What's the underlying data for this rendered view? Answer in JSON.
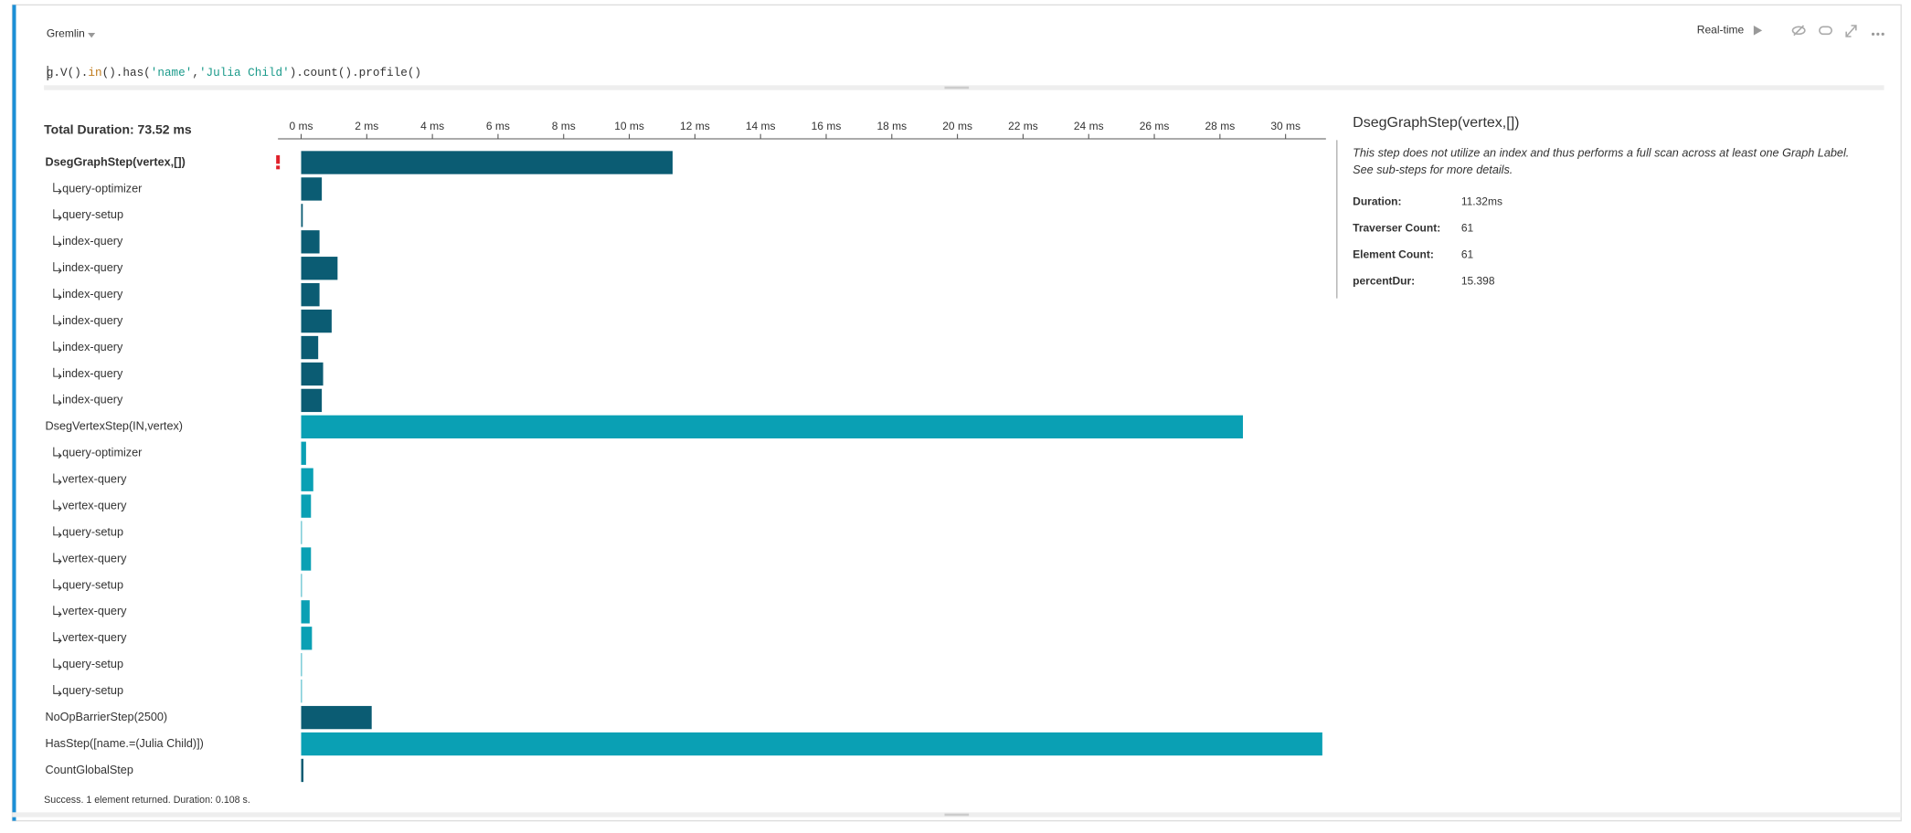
{
  "header": {
    "language": "Gremlin",
    "mode": "Real-time"
  },
  "query": {
    "tokens": [
      {
        "text": "g.V().",
        "color": "#333333"
      },
      {
        "text": "in",
        "color": "#c07a1a"
      },
      {
        "text": "().has(",
        "color": "#333333"
      },
      {
        "text": "'name'",
        "color": "#1a9a8a"
      },
      {
        "text": ",",
        "color": "#333333"
      },
      {
        "text": "'Julia Child'",
        "color": "#1a9a8a"
      },
      {
        "text": ").count().profile()",
        "color": "#333333"
      }
    ]
  },
  "profile": {
    "total": "Total Duration: 73.52 ms",
    "xlim": [
      0,
      31.23
    ],
    "xticks": [
      {
        "value": 0,
        "label": "0 ms"
      },
      {
        "value": 2,
        "label": "2 ms"
      },
      {
        "value": 4,
        "label": "4 ms"
      },
      {
        "value": 6,
        "label": "6 ms"
      },
      {
        "value": 8,
        "label": "8 ms"
      },
      {
        "value": 10,
        "label": "10 ms"
      },
      {
        "value": 12,
        "label": "12 ms"
      },
      {
        "value": 14,
        "label": "14 ms"
      },
      {
        "value": 16,
        "label": "16 ms"
      },
      {
        "value": 18,
        "label": "18 ms"
      },
      {
        "value": 20,
        "label": "20 ms"
      },
      {
        "value": 22,
        "label": "22 ms"
      },
      {
        "value": 24,
        "label": "24 ms"
      },
      {
        "value": 26,
        "label": "26 ms"
      },
      {
        "value": 28,
        "label": "28 ms"
      },
      {
        "value": 30,
        "label": "30 ms"
      }
    ],
    "rows": [
      {
        "name": "DsegGraphStep(vertex,[])",
        "value": 11.32,
        "color": "#0b5c73",
        "child": false,
        "warning": true
      },
      {
        "name": "query-optimizer",
        "value": 0.63,
        "color": "#0b5c73",
        "child": true
      },
      {
        "name": "query-setup",
        "value": 0.05,
        "color": "#0b5c73",
        "child": true
      },
      {
        "name": "index-query",
        "value": 0.56,
        "color": "#0b5c73",
        "child": true
      },
      {
        "name": "index-query",
        "value": 1.11,
        "color": "#0b5c73",
        "child": true
      },
      {
        "name": "index-query",
        "value": 0.56,
        "color": "#0b5c73",
        "child": true
      },
      {
        "name": "index-query",
        "value": 0.93,
        "color": "#0b5c73",
        "child": true
      },
      {
        "name": "index-query",
        "value": 0.52,
        "color": "#0b5c73",
        "child": true
      },
      {
        "name": "index-query",
        "value": 0.67,
        "color": "#0b5c73",
        "child": true
      },
      {
        "name": "index-query",
        "value": 0.63,
        "color": "#0b5c73",
        "child": true
      },
      {
        "name": "DsegVertexStep(IN,vertex)",
        "value": 28.7,
        "color": "#0aa0b4",
        "child": false
      },
      {
        "name": "query-optimizer",
        "value": 0.15,
        "color": "#0aa0b4",
        "child": true
      },
      {
        "name": "vertex-query",
        "value": 0.37,
        "color": "#0aa0b4",
        "child": true
      },
      {
        "name": "vertex-query",
        "value": 0.3,
        "color": "#0aa0b4",
        "child": true
      },
      {
        "name": "query-setup",
        "value": 0.02,
        "color": "#0aa0b4",
        "child": true
      },
      {
        "name": "vertex-query",
        "value": 0.3,
        "color": "#0aa0b4",
        "child": true
      },
      {
        "name": "query-setup",
        "value": 0.02,
        "color": "#0aa0b4",
        "child": true
      },
      {
        "name": "vertex-query",
        "value": 0.26,
        "color": "#0aa0b4",
        "child": true
      },
      {
        "name": "vertex-query",
        "value": 0.33,
        "color": "#0aa0b4",
        "child": true
      },
      {
        "name": "query-setup",
        "value": 0.02,
        "color": "#0aa0b4",
        "child": true
      },
      {
        "name": "query-setup",
        "value": 0.02,
        "color": "#0aa0b4",
        "child": true
      },
      {
        "name": "NoOpBarrierStep(2500)",
        "value": 2.15,
        "color": "#0b5c73",
        "child": false
      },
      {
        "name": "HasStep([name.=(Julia Child)])",
        "value": 31.12,
        "color": "#0aa0b4",
        "child": false
      },
      {
        "name": "CountGlobalStep",
        "value": 0.07,
        "color": "#0b5c73",
        "child": false
      }
    ]
  },
  "details": {
    "title": "DsegGraphStep(vertex,[])",
    "description": [
      "This step does not utilize an index and thus performs a full scan across at least one Graph Label.",
      "See sub-steps for more details."
    ],
    "fields": [
      [
        "Duration:",
        "11.32ms"
      ],
      [
        "Traverser Count:",
        "61"
      ],
      [
        "Element Count:",
        "61"
      ],
      [
        "percentDur:",
        "15.398"
      ]
    ]
  },
  "status": "Success. 1 element returned. Duration: 0.108 s."
}
